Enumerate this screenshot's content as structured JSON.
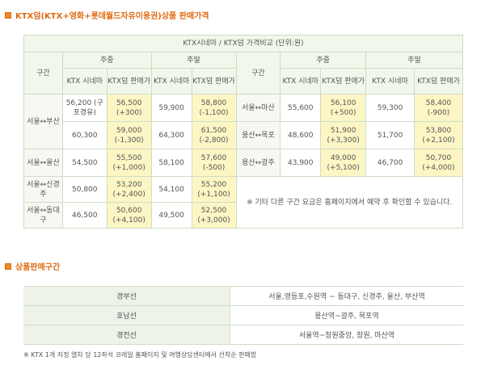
{
  "title1": "KTX덤(KTX+영화+롯데월드자유이용권)상품 판매가격",
  "table_caption": "KTX시네마 / KTX덤 가격비교 (단위:원)",
  "headers": {
    "section": "구간",
    "weekday": "주중",
    "weekend": "주말",
    "ktx": "KTX 시네마",
    "dum": "KTX덤 판매가"
  },
  "left_rows": [
    {
      "route": "서울↔부산",
      "wd_ktx": "56,200 (구포경유)",
      "wd_dum": "56,500 (+300)",
      "we_ktx": "59,900",
      "we_dum": "58,800 (-1,100)"
    },
    {
      "route": "",
      "wd_ktx": "60,300",
      "wd_dum": "59,000 (-1,300)",
      "we_ktx": "64,300",
      "we_dum": "61,500 (-2,800)"
    },
    {
      "route": "서울↔울산",
      "wd_ktx": "54,500",
      "wd_dum": "55,500 (+1,000)",
      "we_ktx": "58,100",
      "we_dum": "57,600 (-500)"
    },
    {
      "route": "서울↔신경주",
      "wd_ktx": "50,800",
      "wd_dum": "53,200 (+2,400)",
      "we_ktx": "54,100",
      "we_dum": "55,200 (+1,100)"
    },
    {
      "route": "서울↔동대구",
      "wd_ktx": "46,500",
      "wd_dum": "50,600 (+4,100)",
      "we_ktx": "49,500",
      "we_dum": "52,500 (+3,000)"
    }
  ],
  "right_rows": [
    {
      "route": "서울↔마산",
      "wd_ktx": "55,600",
      "wd_dum": "56,100 (+500)",
      "we_ktx": "59,300",
      "we_dum": "58,400 (-900)"
    },
    {
      "route": "용산↔목포",
      "wd_ktx": "48,600",
      "wd_dum": "51,900 (+3,300)",
      "we_ktx": "51,700",
      "we_dum": "53,800 (+2,100)"
    },
    {
      "route": "용산↔광주",
      "wd_ktx": "43,900",
      "wd_dum": "49,000 (+5,100)",
      "we_ktx": "46,700",
      "we_dum": "50,700 (+4,000)"
    }
  ],
  "note": "※ 기타 다른 구간 요금은 홈페이지에서 예약 후 확인할 수 있습니다.",
  "title2": "상품판매구간",
  "routes": [
    {
      "line": "경부선",
      "stations": "서울,영등포,수원역 ~ 동대구, 신경주, 울산, 부산역"
    },
    {
      "line": "호남선",
      "stations": "용산역~광주, 목포역"
    },
    {
      "line": "경전선",
      "stations": "서울역~창원중앙, 창원, 마산역"
    }
  ],
  "footnote": "※ KTX 1개 지정 열차 당 12좌석 코레일 홈페이지 및 여행상담센터에서 선착순 판매함",
  "colors": {
    "accent": "#e06a10",
    "header_bg": "#f1f7ea",
    "highlight_bg": "#fcf6c5",
    "border": "#cfdcc5"
  }
}
